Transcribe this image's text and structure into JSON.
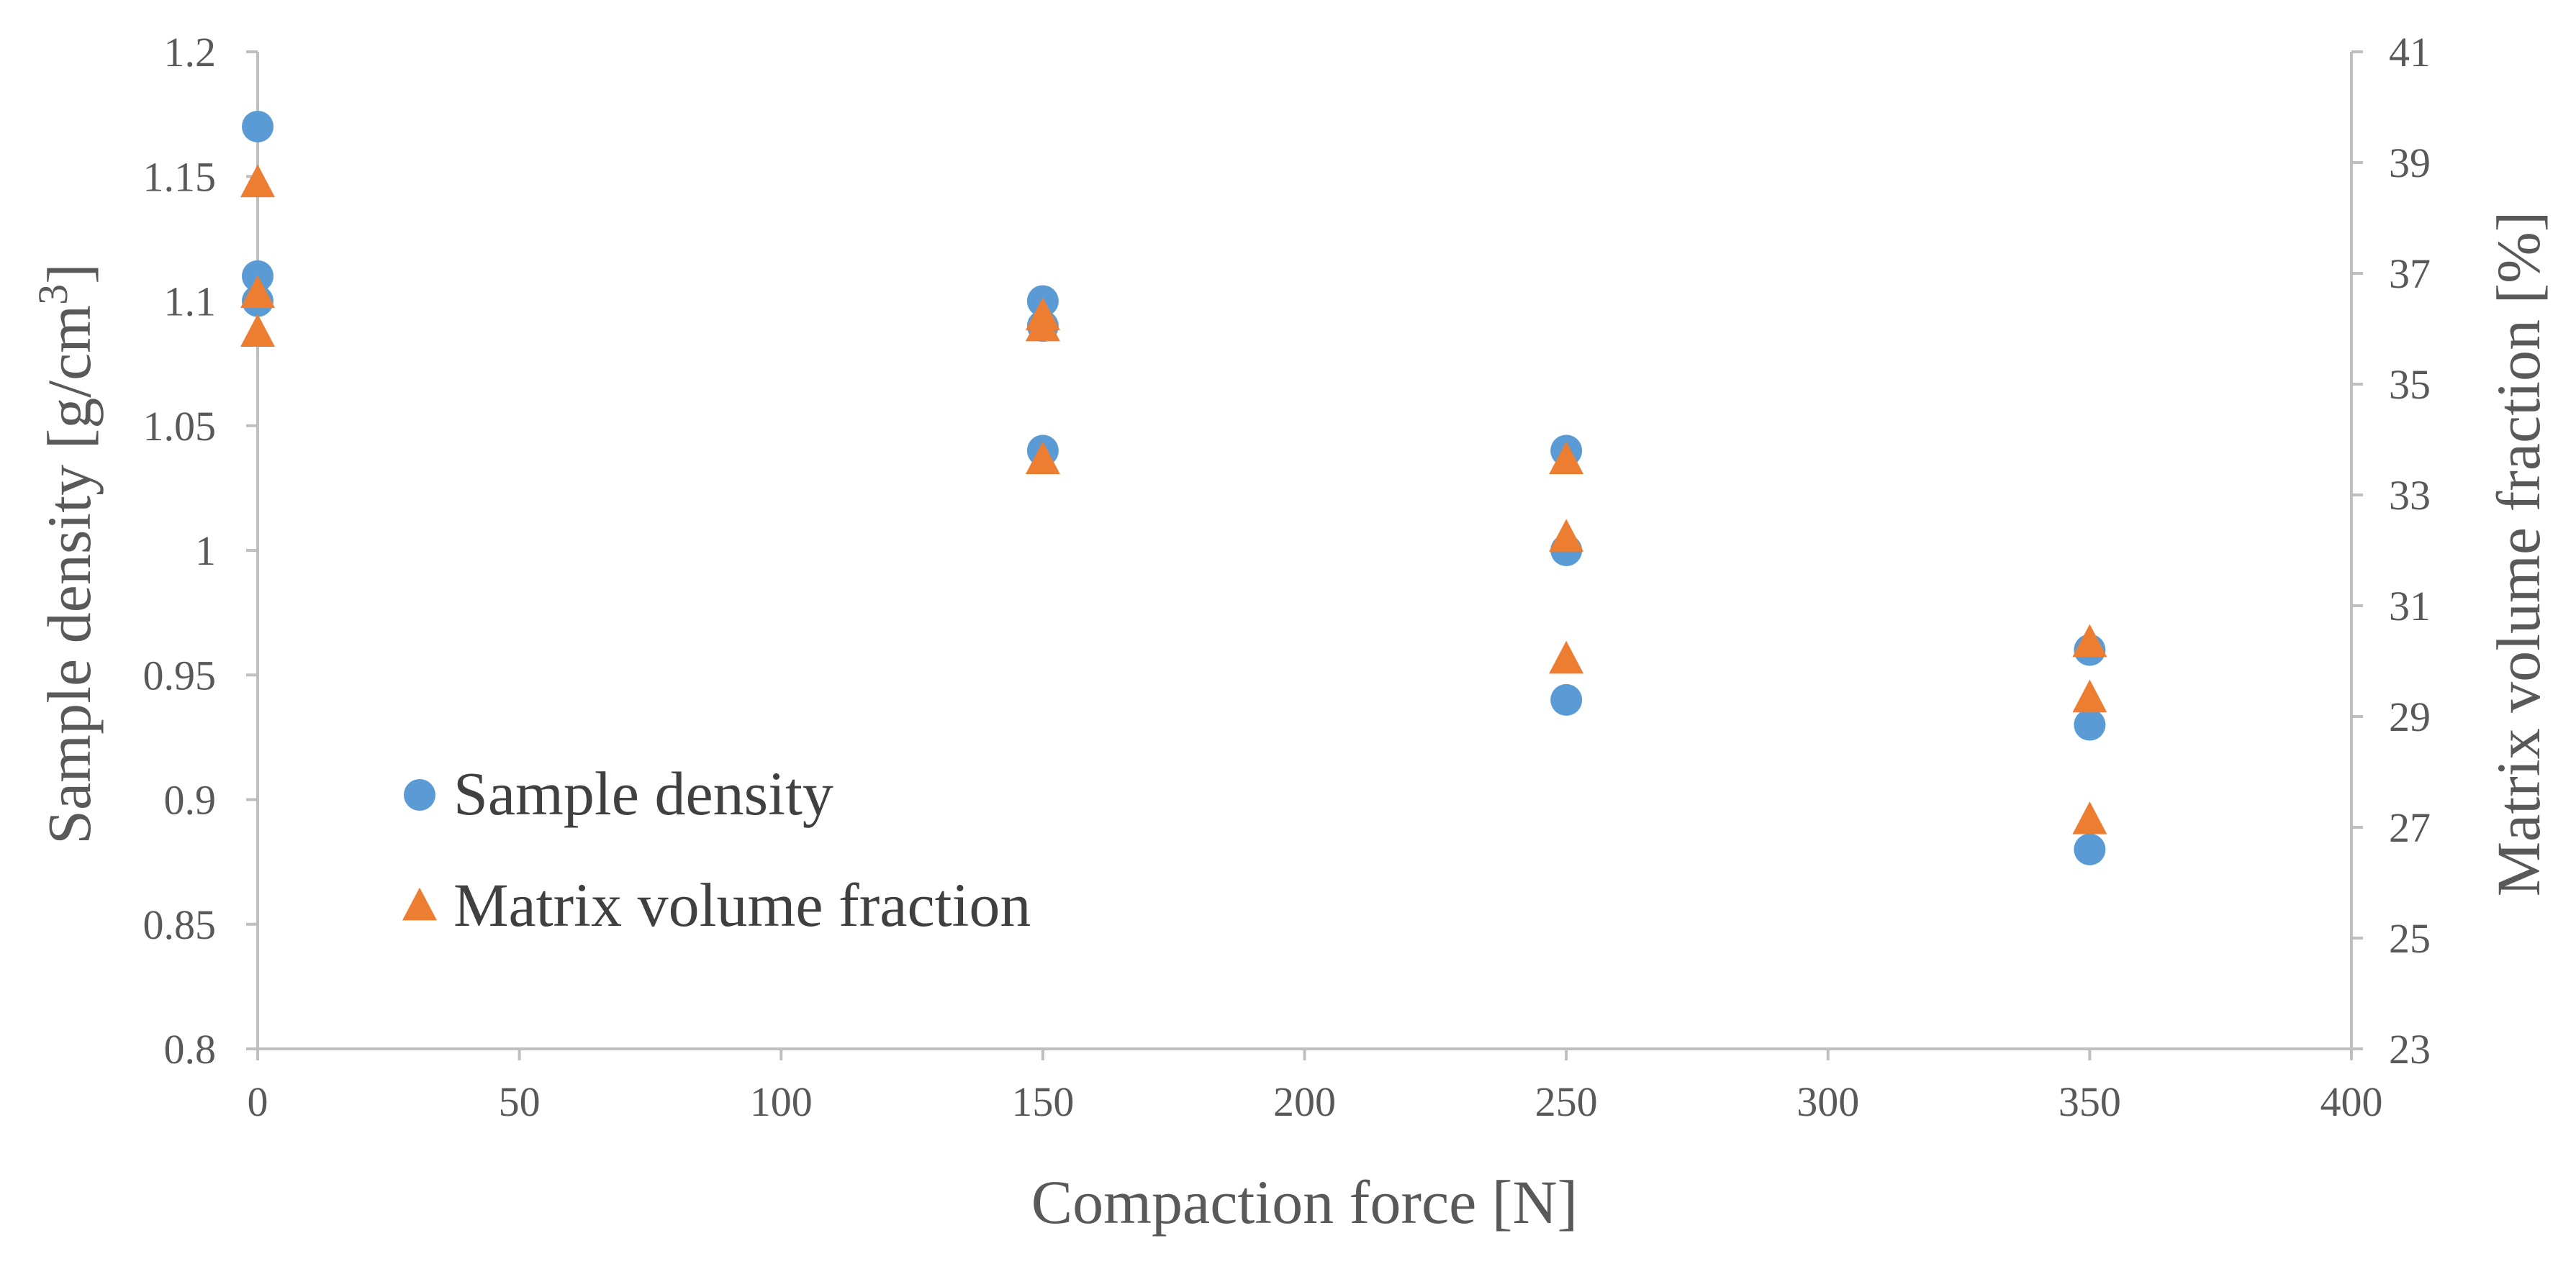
{
  "chart_data": {
    "type": "scatter",
    "xlabel": "Compaction force [N]",
    "ylabel": "Sample density [g/cm³]",
    "ylabel_parts": {
      "main": "Sample density [g/cm",
      "sup": "3",
      "end": "]"
    },
    "y2label": "Matrix volume fraction [%]",
    "xlim": [
      0,
      400
    ],
    "ylim": [
      0.8,
      1.2
    ],
    "y2lim": [
      23,
      41
    ],
    "xticks": [
      0,
      50,
      100,
      150,
      200,
      250,
      300,
      350,
      400
    ],
    "yticks": [
      "0.8",
      "0.85",
      "0.9",
      "0.95",
      "1",
      "1.05",
      "1.1",
      "1.15",
      "1.2"
    ],
    "y2ticks": [
      23,
      25,
      27,
      29,
      31,
      33,
      35,
      37,
      39,
      41
    ],
    "grid": false,
    "legend_position": "bottom-left",
    "series": [
      {
        "name": "Sample density",
        "axis": "left",
        "marker": "circle",
        "color": "#5B9BD5",
        "x": [
          0,
          0,
          0,
          150,
          150,
          150,
          250,
          250,
          250,
          350,
          350,
          350
        ],
        "y": [
          1.17,
          1.11,
          1.1,
          1.1,
          1.09,
          1.04,
          1.04,
          1.0,
          0.94,
          0.96,
          0.93,
          0.88
        ]
      },
      {
        "name": "Matrix volume fraction",
        "axis": "right",
        "marker": "triangle",
        "color": "#ED7D31",
        "x": [
          0,
          0,
          0,
          150,
          150,
          150,
          250,
          250,
          250,
          350,
          350,
          350
        ],
        "y": [
          38.6,
          36.6,
          35.9,
          36.2,
          36.0,
          33.6,
          33.6,
          32.2,
          30.0,
          30.3,
          29.3,
          27.1
        ]
      }
    ]
  }
}
